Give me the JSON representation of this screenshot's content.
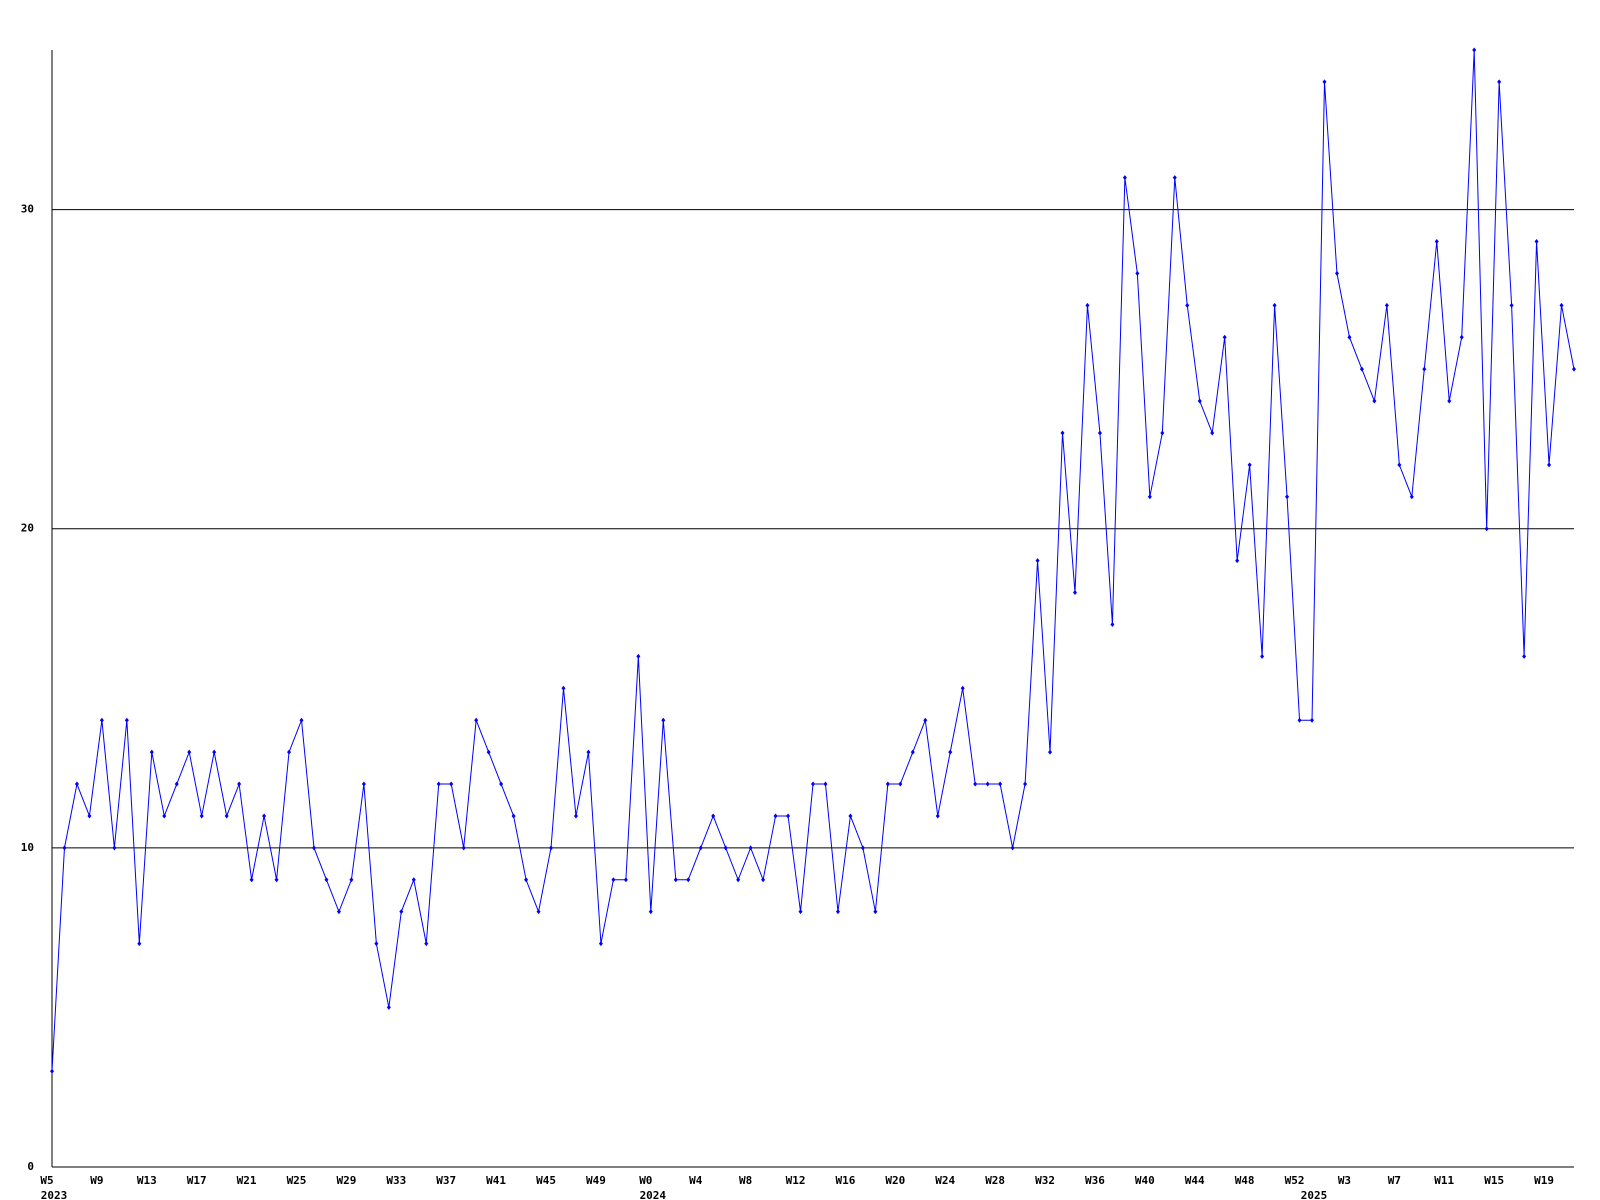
{
  "chart_data": {
    "type": "line",
    "color": "#0000ff",
    "grid": true,
    "ylim": [
      0,
      35
    ],
    "yticks": [
      0,
      10,
      20,
      30
    ],
    "categories": [
      "W5",
      null,
      null,
      null,
      "W9",
      null,
      null,
      null,
      "W13",
      null,
      null,
      null,
      "W17",
      null,
      null,
      null,
      "W21",
      null,
      null,
      null,
      "W25",
      null,
      null,
      null,
      "W29",
      null,
      null,
      null,
      "W33",
      null,
      null,
      null,
      "W37",
      null,
      null,
      null,
      "W41",
      null,
      null,
      null,
      "W45",
      null,
      null,
      null,
      "W49",
      null,
      null,
      null,
      "W0",
      null,
      null,
      null,
      "W4",
      null,
      null,
      null,
      "W8",
      null,
      null,
      null,
      "W12",
      null,
      null,
      null,
      "W16",
      null,
      null,
      null,
      "W20",
      null,
      null,
      null,
      "W24",
      null,
      null,
      null,
      "W28",
      null,
      null,
      null,
      "W32",
      null,
      null,
      null,
      "W36",
      null,
      null,
      null,
      "W40",
      null,
      null,
      null,
      "W44",
      null,
      null,
      null,
      "W48",
      null,
      null,
      null,
      "W52",
      null,
      null,
      null,
      "W3",
      null,
      null,
      null,
      "W7",
      null,
      null,
      null,
      "W11",
      null,
      null,
      null,
      "W15",
      null,
      null,
      null,
      "W19",
      null,
      null
    ],
    "year_labels": [
      {
        "label": "2023",
        "index": 0
      },
      {
        "label": "2024",
        "index": 48
      },
      {
        "label": "2025",
        "index": 101
      }
    ],
    "values": [
      3,
      10,
      12,
      11,
      14,
      10,
      14,
      7,
      13,
      11,
      12,
      13,
      11,
      13,
      11,
      12,
      9,
      11,
      9,
      13,
      14,
      10,
      9,
      8,
      9,
      12,
      7,
      5,
      8,
      9,
      7,
      12,
      12,
      10,
      14,
      13,
      12,
      11,
      9,
      8,
      10,
      15,
      11,
      13,
      7,
      9,
      9,
      16,
      8,
      14,
      9,
      9,
      10,
      11,
      10,
      9,
      10,
      9,
      11,
      11,
      8,
      12,
      12,
      8,
      11,
      10,
      8,
      12,
      12,
      13,
      14,
      11,
      13,
      15,
      12,
      12,
      12,
      10,
      12,
      19,
      13,
      23,
      18,
      27,
      23,
      17,
      31,
      28,
      21,
      23,
      31,
      27,
      24,
      23,
      26,
      19,
      22,
      16,
      27,
      21,
      14,
      14,
      34,
      28,
      26,
      25,
      24,
      27,
      22,
      21,
      25,
      29,
      24,
      26,
      35,
      20,
      34,
      27,
      16,
      29,
      22,
      27,
      25
    ]
  }
}
